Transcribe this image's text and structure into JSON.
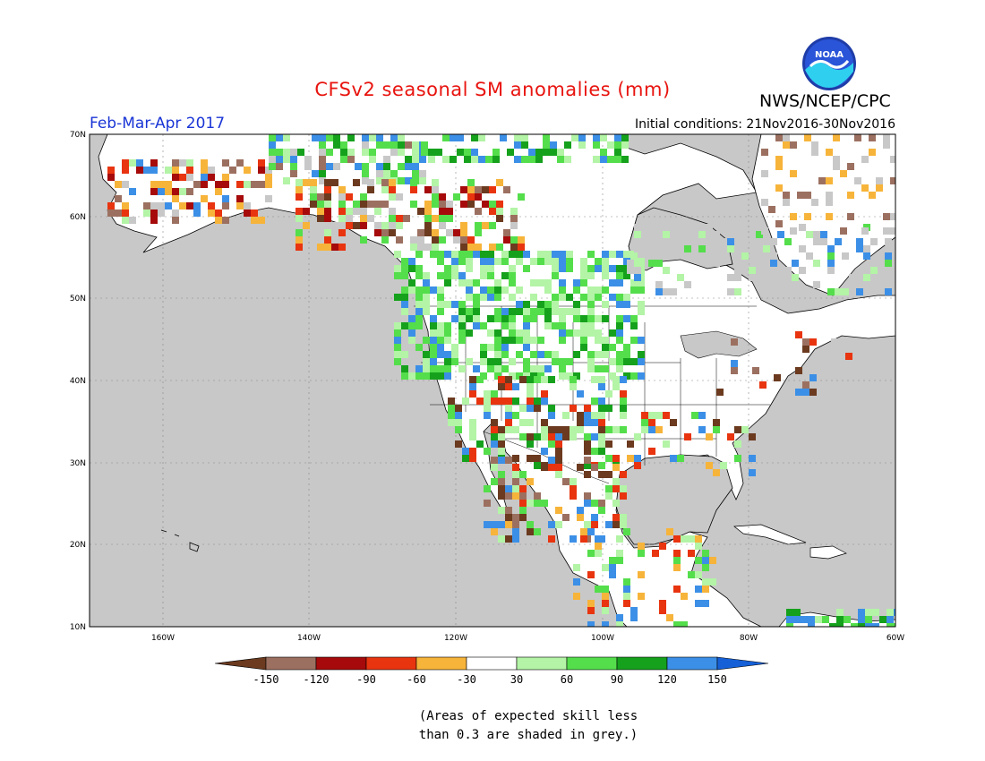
{
  "title": "CFSv2 seasonal SM anomalies (mm)",
  "org": "NWS/NCEP/CPC",
  "period": "Feb-Mar-Apr 2017",
  "initial_conditions": "Initial conditions: 21Nov2016-30Nov2016",
  "logo_text": "NOAA",
  "lat_labels": [
    "70N",
    "60N",
    "50N",
    "40N",
    "30N",
    "20N",
    "10N"
  ],
  "lon_labels": [
    "160W",
    "140W",
    "120W",
    "100W",
    "80W",
    "60W"
  ],
  "colorbar": {
    "tick_labels": [
      "-150",
      "-120",
      "-90",
      "-60",
      "-30",
      "30",
      "60",
      "90",
      "120",
      "150"
    ],
    "colors": [
      "#6b3a1f",
      "#9c7060",
      "#a60a0a",
      "#e8340f",
      "#f7b43a",
      "#ffffff",
      "#b3f4a6",
      "#54de4b",
      "#15a11c",
      "#3c8fe6",
      "#1560d6"
    ]
  },
  "colors": {
    "ocean_grey": "#c8c8c8",
    "land": "#ffffff",
    "title": "#e8140f",
    "period": "#1a35d6"
  },
  "note": [
    "(Areas of expected skill less",
    "than 0.3 are shaded in grey.)"
  ]
}
